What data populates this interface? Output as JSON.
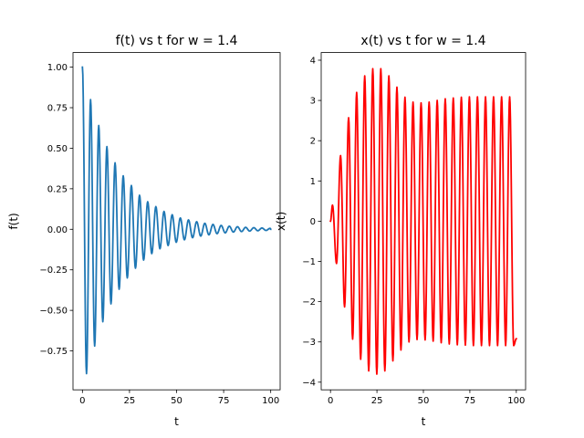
{
  "chart_data": [
    {
      "type": "line",
      "title": "f(t) vs t for w = 1.4",
      "xlabel": "t",
      "ylabel": "f(t)",
      "xlim": [
        -5,
        105
      ],
      "ylim": [
        -0.99,
        1.09
      ],
      "grid": false,
      "x_ticks": [
        0,
        25,
        50,
        75,
        100
      ],
      "x_tick_labels": [
        "0",
        "25",
        "50",
        "75",
        "100"
      ],
      "y_ticks": [
        -0.75,
        -0.5,
        -0.25,
        0.0,
        0.25,
        0.5,
        0.75,
        1.0
      ],
      "y_tick_labels": [
        "−0.75",
        "−0.50",
        "−0.25",
        "0.00",
        "0.25",
        "0.50",
        "0.75",
        "1.00"
      ],
      "series": [
        {
          "color": "#1f77b4",
          "x": [
            0,
            2.17,
            4.33,
            6.5,
            8.67,
            10.83,
            13.0,
            15.17,
            17.33,
            19.5,
            21.67,
            23.83,
            26.0,
            28.17,
            30.33,
            32.5,
            34.67,
            36.83,
            39.0,
            41.17,
            43.33,
            45.5,
            47.67,
            49.83,
            52.0,
            54.17,
            56.33,
            58.5,
            60.67,
            62.83,
            65.0,
            67.17,
            69.33,
            71.5,
            73.67,
            75.83,
            78.0,
            80.17,
            82.33,
            84.5,
            86.67,
            88.83,
            91.0,
            93.17,
            95.33,
            97.5,
            99.67,
            100
          ],
          "y": [
            1.0,
            -0.89,
            0.8,
            -0.72,
            0.64,
            -0.57,
            0.51,
            -0.46,
            0.41,
            -0.37,
            0.33,
            -0.3,
            0.27,
            -0.24,
            0.21,
            -0.19,
            0.17,
            -0.15,
            0.14,
            -0.12,
            0.11,
            -0.1,
            0.09,
            -0.08,
            0.07,
            -0.065,
            0.058,
            -0.052,
            0.047,
            -0.042,
            0.037,
            -0.034,
            0.03,
            -0.027,
            0.024,
            -0.022,
            0.019,
            -0.017,
            0.016,
            -0.014,
            0.012,
            -0.011,
            0.01,
            -0.009,
            0.008,
            -0.007,
            0.006,
            0.0
          ]
        }
      ]
    },
    {
      "type": "line",
      "title": "x(t) vs t for w = 1.4",
      "xlabel": "t",
      "ylabel": "x(t)",
      "xlim": [
        -5,
        105
      ],
      "ylim": [
        -4.19,
        4.19
      ],
      "grid": false,
      "x_ticks": [
        0,
        25,
        50,
        75,
        100
      ],
      "x_tick_labels": [
        "0",
        "25",
        "50",
        "75",
        "100"
      ],
      "y_ticks": [
        -4,
        -3,
        -2,
        -1,
        0,
        1,
        2,
        3,
        4
      ],
      "y_tick_labels": [
        "−4",
        "−3",
        "−2",
        "−1",
        "0",
        "1",
        "2",
        "3",
        "4"
      ],
      "series": [
        {
          "color": "#ff0000",
          "x": [
            0,
            1.08,
            3.25,
            5.42,
            7.58,
            9.75,
            11.92,
            14.08,
            16.25,
            18.42,
            20.58,
            22.75,
            24.92,
            27.08,
            29.25,
            31.42,
            33.58,
            35.75,
            37.92,
            40.08,
            42.25,
            44.42,
            46.58,
            48.75,
            50.92,
            53.08,
            55.25,
            57.42,
            59.58,
            61.75,
            63.92,
            66.08,
            68.25,
            70.42,
            72.58,
            74.75,
            76.92,
            79.08,
            81.25,
            83.42,
            85.58,
            87.75,
            89.92,
            92.08,
            94.25,
            96.42,
            98.58,
            100
          ],
          "y": [
            0.0,
            0.4,
            -1.05,
            1.63,
            -2.13,
            2.57,
            -2.93,
            3.2,
            -3.43,
            3.61,
            -3.72,
            3.79,
            -3.8,
            3.79,
            -3.72,
            3.61,
            -3.47,
            3.33,
            -3.2,
            3.08,
            -3.0,
            2.96,
            -2.94,
            2.94,
            -2.95,
            2.96,
            -2.98,
            3.0,
            -3.02,
            3.04,
            -3.05,
            3.06,
            -3.07,
            3.08,
            -3.08,
            3.09,
            -3.09,
            3.09,
            -3.09,
            3.09,
            -3.09,
            3.09,
            -3.09,
            3.09,
            -3.09,
            3.09,
            -3.09,
            -2.92
          ]
        }
      ]
    }
  ]
}
